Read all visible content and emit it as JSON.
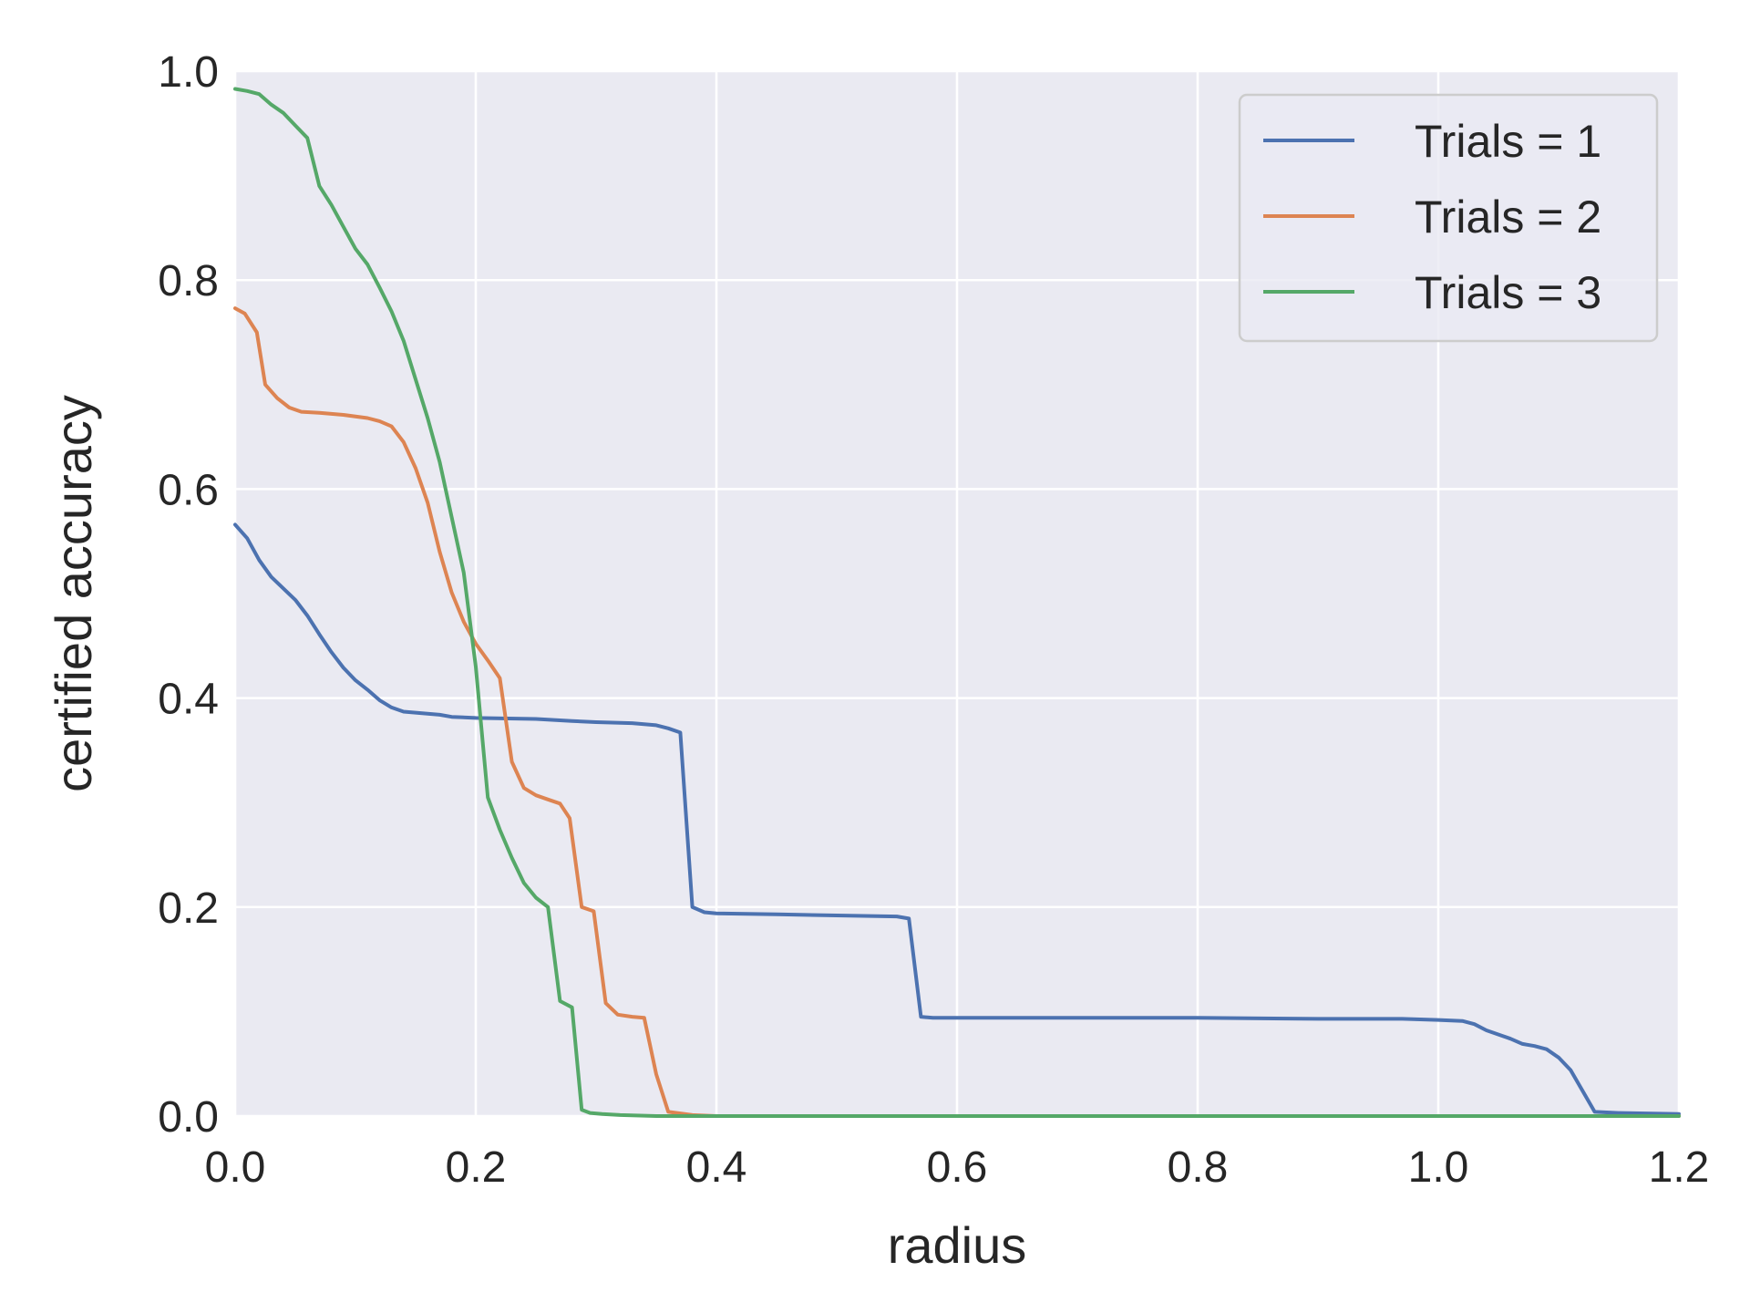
{
  "chart_data": {
    "type": "line",
    "title": "",
    "xlabel": "radius",
    "ylabel": "certified accuracy",
    "xlim": [
      0.0,
      1.2
    ],
    "ylim": [
      0.0,
      1.0
    ],
    "xticks": [
      "0.0",
      "0.2",
      "0.4",
      "0.6",
      "0.8",
      "1.0",
      "1.2"
    ],
    "yticks": [
      "0.0",
      "0.2",
      "0.4",
      "0.6",
      "0.8",
      "1.0"
    ],
    "grid": true,
    "legend_position": "top-right",
    "background_color": "#eaeaf2",
    "series": [
      {
        "name": "Trials = 1",
        "color": "#4c72b0",
        "x": [
          0.0,
          0.01,
          0.02,
          0.03,
          0.04,
          0.05,
          0.06,
          0.07,
          0.08,
          0.09,
          0.1,
          0.11,
          0.12,
          0.13,
          0.14,
          0.15,
          0.17,
          0.18,
          0.2,
          0.25,
          0.28,
          0.3,
          0.33,
          0.35,
          0.36,
          0.37,
          0.38,
          0.39,
          0.4,
          0.45,
          0.5,
          0.55,
          0.56,
          0.57,
          0.58,
          0.6,
          0.7,
          0.8,
          0.9,
          0.97,
          1.0,
          1.02,
          1.03,
          1.04,
          1.06,
          1.07,
          1.08,
          1.09,
          1.1,
          1.11,
          1.13,
          1.15,
          1.2
        ],
        "y": [
          0.566,
          0.553,
          0.532,
          0.516,
          0.505,
          0.494,
          0.479,
          0.461,
          0.444,
          0.429,
          0.417,
          0.408,
          0.398,
          0.391,
          0.387,
          0.386,
          0.384,
          0.382,
          0.381,
          0.38,
          0.378,
          0.377,
          0.376,
          0.374,
          0.371,
          0.367,
          0.2,
          0.195,
          0.194,
          0.193,
          0.192,
          0.191,
          0.189,
          0.095,
          0.094,
          0.094,
          0.094,
          0.094,
          0.093,
          0.093,
          0.092,
          0.091,
          0.088,
          0.082,
          0.074,
          0.069,
          0.067,
          0.064,
          0.056,
          0.044,
          0.004,
          0.003,
          0.002
        ]
      },
      {
        "name": "Trials = 2",
        "color": "#dd8452",
        "x": [
          0.0,
          0.008,
          0.018,
          0.025,
          0.035,
          0.045,
          0.055,
          0.07,
          0.09,
          0.11,
          0.12,
          0.13,
          0.14,
          0.15,
          0.16,
          0.17,
          0.18,
          0.19,
          0.2,
          0.21,
          0.22,
          0.23,
          0.24,
          0.25,
          0.26,
          0.27,
          0.278,
          0.288,
          0.298,
          0.308,
          0.318,
          0.33,
          0.34,
          0.35,
          0.36,
          0.38,
          0.4,
          0.6,
          0.8,
          1.0,
          1.2
        ],
        "y": [
          0.773,
          0.768,
          0.75,
          0.7,
          0.687,
          0.678,
          0.674,
          0.673,
          0.671,
          0.668,
          0.665,
          0.66,
          0.645,
          0.62,
          0.587,
          0.54,
          0.501,
          0.473,
          0.452,
          0.436,
          0.419,
          0.339,
          0.314,
          0.307,
          0.303,
          0.299,
          0.285,
          0.2,
          0.196,
          0.108,
          0.097,
          0.095,
          0.094,
          0.04,
          0.004,
          0.001,
          0.0,
          0.0,
          0.0,
          0.0,
          0.0
        ]
      },
      {
        "name": "Trials = 3",
        "color": "#55a868",
        "x": [
          0.0,
          0.01,
          0.02,
          0.03,
          0.04,
          0.05,
          0.06,
          0.07,
          0.08,
          0.09,
          0.1,
          0.11,
          0.12,
          0.13,
          0.14,
          0.15,
          0.16,
          0.17,
          0.18,
          0.19,
          0.2,
          0.21,
          0.22,
          0.23,
          0.24,
          0.25,
          0.26,
          0.27,
          0.28,
          0.288,
          0.295,
          0.305,
          0.32,
          0.35,
          0.4,
          0.6,
          0.8,
          1.0,
          1.2
        ],
        "y": [
          0.983,
          0.981,
          0.978,
          0.968,
          0.96,
          0.948,
          0.936,
          0.89,
          0.872,
          0.851,
          0.83,
          0.815,
          0.793,
          0.77,
          0.742,
          0.705,
          0.668,
          0.626,
          0.573,
          0.52,
          0.43,
          0.305,
          0.274,
          0.247,
          0.223,
          0.209,
          0.2,
          0.11,
          0.104,
          0.006,
          0.003,
          0.002,
          0.001,
          0.0,
          0.0,
          0.0,
          0.0,
          0.0,
          0.0
        ]
      }
    ]
  }
}
